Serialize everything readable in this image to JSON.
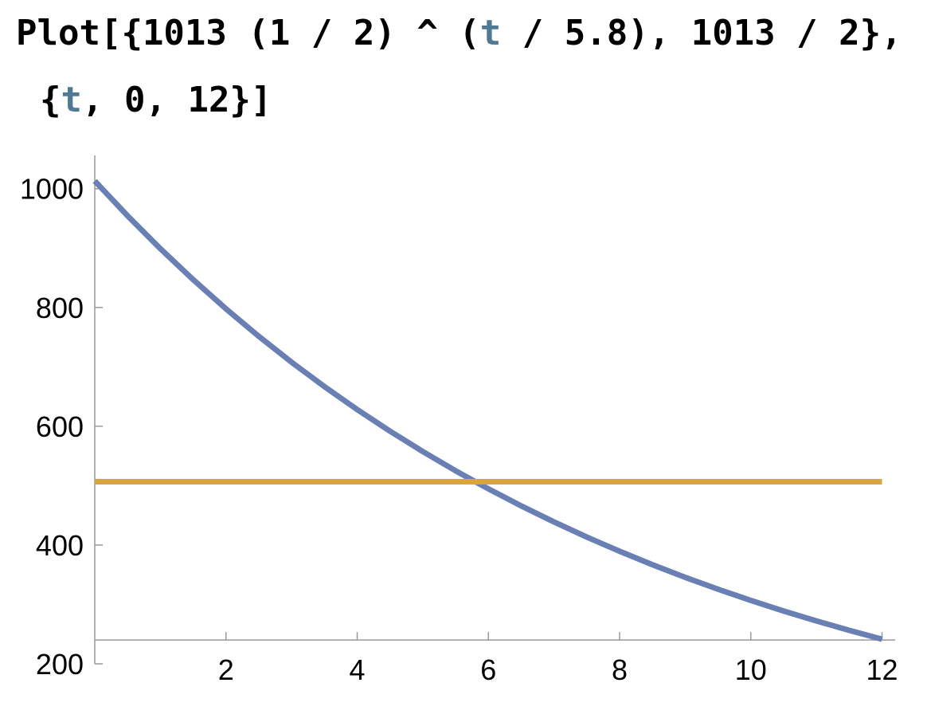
{
  "input": {
    "lines": [
      [
        "Plot[{1013 (1 / 2) ^ (",
        "t",
        " / 5.8), 1013 / 2},"
      ],
      [
        "{",
        "t",
        ", 0, 12}]"
      ]
    ]
  },
  "chart_data": {
    "type": "line",
    "series": [
      {
        "color": "#6a80b4",
        "x": [
          0,
          0.5,
          1,
          1.5,
          2,
          2.5,
          3,
          3.5,
          4,
          4.5,
          5,
          5.5,
          6,
          6.5,
          7,
          7.5,
          8,
          8.5,
          9,
          9.5,
          10,
          10.5,
          11,
          11.5,
          12
        ],
        "values": [
          1013.0,
          954.3,
          898.9,
          846.8,
          797.7,
          751.4,
          707.8,
          666.8,
          628.1,
          591.7,
          557.4,
          525.0,
          494.6,
          465.9,
          438.9,
          413.4,
          389.5,
          366.9,
          345.6,
          325.6,
          306.7,
          288.9,
          272.2,
          256.4,
          241.5
        ]
      },
      {
        "color": "#d9a540",
        "x": [
          0,
          12
        ],
        "values": [
          506.5,
          506.5
        ]
      }
    ],
    "xlim": [
      0,
      12.2
    ],
    "ylim": [
      200,
      1056
    ],
    "xticks": [
      2,
      4,
      6,
      8,
      10,
      12
    ],
    "yticks": [
      200,
      400,
      600,
      800,
      1000
    ],
    "x_axis_at": 240
  }
}
